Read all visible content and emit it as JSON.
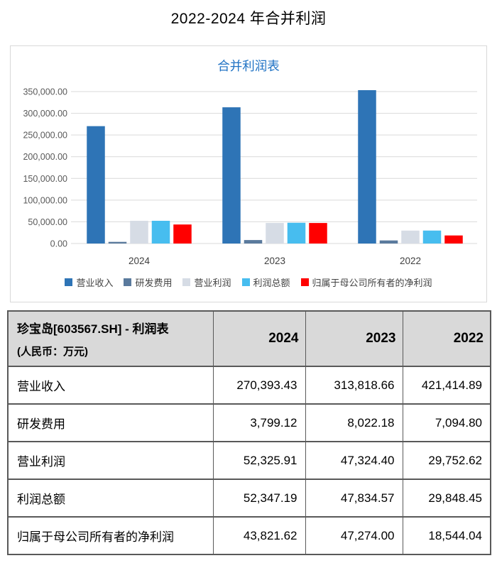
{
  "page": {
    "title": "2022-2024 年合并利润"
  },
  "chart": {
    "title": "合并利润表",
    "title_color": "#1F72C4"
  },
  "chart_data": {
    "type": "bar",
    "title": "合并利润表",
    "categories": [
      "2024",
      "2023",
      "2022"
    ],
    "series": [
      {
        "name": "营业收入",
        "color": "#2E74B6",
        "values": [
          270393.43,
          313818.66,
          421414.89
        ]
      },
      {
        "name": "研发费用",
        "color": "#5A7A9D",
        "values": [
          3799.12,
          8022.18,
          7094.8
        ]
      },
      {
        "name": "营业利润",
        "color": "#D6DCE5",
        "values": [
          52325.91,
          47324.4,
          29752.62
        ]
      },
      {
        "name": "利润总额",
        "color": "#47BDEF",
        "values": [
          52347.19,
          47834.57,
          29848.45
        ]
      },
      {
        "name": "归属于母公司所有者的净利润",
        "color": "#FF0000",
        "values": [
          43821.62,
          47274.0,
          18544.04
        ]
      }
    ],
    "xlabel": "",
    "ylabel": "",
    "ylim": [
      0,
      350000
    ],
    "ytick_step": 50000,
    "ytick_format": "thousands_2dp",
    "grid": true,
    "grid_color": "#d9d9d9",
    "axis_text_color": "#595959",
    "category_text_color": "#404040",
    "legend_position": "bottom",
    "clip_overflow": true
  },
  "table": {
    "header": {
      "title_line1": "珍宝岛[603567.SH] - 利润表",
      "title_line2": "(人民币：万元)",
      "years": [
        "2024",
        "2023",
        "2022"
      ]
    },
    "rows": [
      {
        "label": "营业收入",
        "values": [
          "270,393.43",
          "313,818.66",
          "421,414.89"
        ]
      },
      {
        "label": "研发费用",
        "values": [
          "3,799.12",
          "8,022.18",
          "7,094.80"
        ]
      },
      {
        "label": "营业利润",
        "values": [
          "52,325.91",
          "47,324.40",
          "29,752.62"
        ]
      },
      {
        "label": "利润总额",
        "values": [
          "52,347.19",
          "47,834.57",
          "29,848.45"
        ]
      },
      {
        "label": "归属于母公司所有者的净利润",
        "values": [
          "43,821.62",
          "47,274.00",
          "18,544.04"
        ]
      }
    ]
  }
}
